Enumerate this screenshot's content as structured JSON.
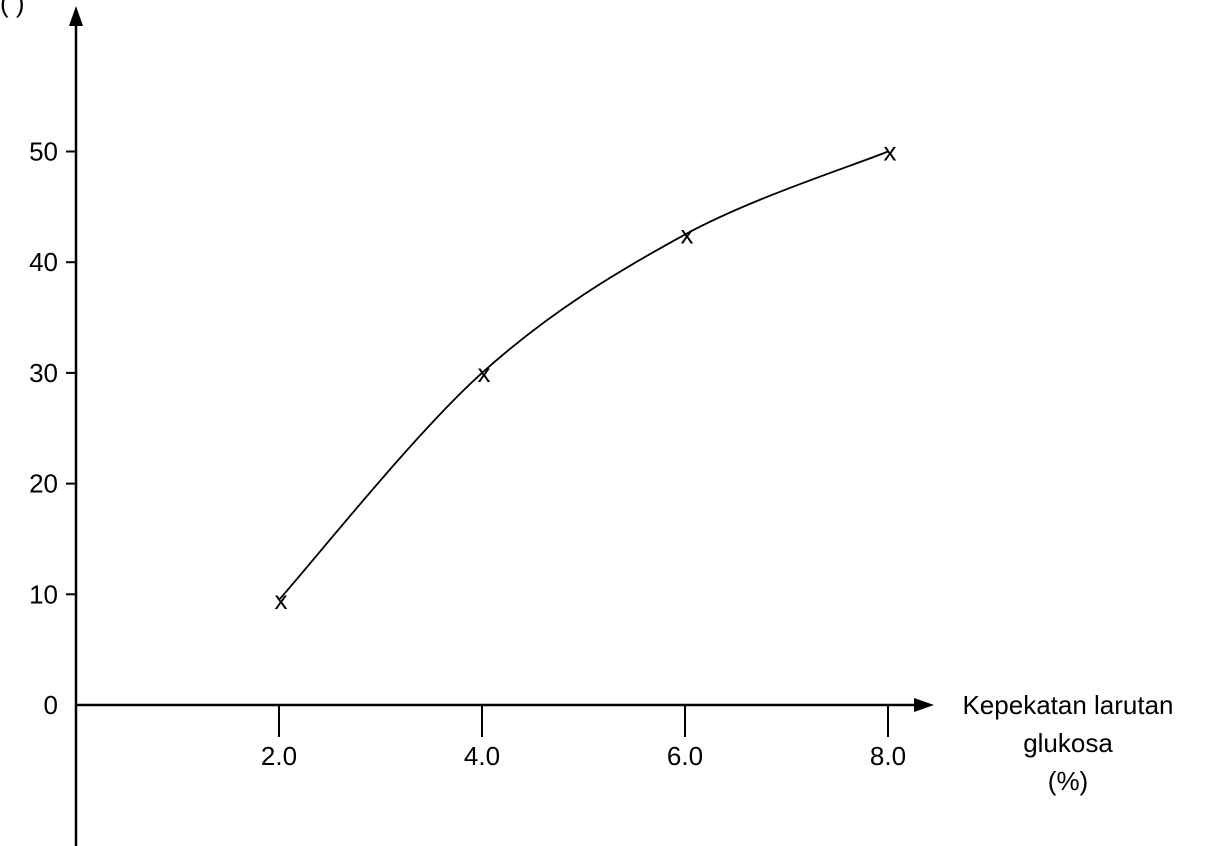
{
  "chart_data": {
    "type": "line",
    "title": "",
    "ylabel_visible_fragment": "(    )",
    "xlabel_lines": [
      "Kepekatan larutan",
      "glukosa",
      "(%)"
    ],
    "x_ticks": [
      "2.0",
      "4.0",
      "6.0",
      "8.0"
    ],
    "y_ticks": [
      "0",
      "10",
      "20",
      "30",
      "40",
      "50"
    ],
    "x": [
      2.0,
      4.0,
      6.0,
      8.0
    ],
    "y": [
      9.5,
      30,
      42.5,
      50
    ],
    "marker_symbol": "x",
    "line_style": "smooth curve through points",
    "ylim": [
      0,
      50
    ],
    "xlim": [
      0,
      8.0
    ],
    "grid": false,
    "colors": {
      "line": "#000000",
      "axis": "#000000",
      "background": "#ffffff"
    }
  }
}
